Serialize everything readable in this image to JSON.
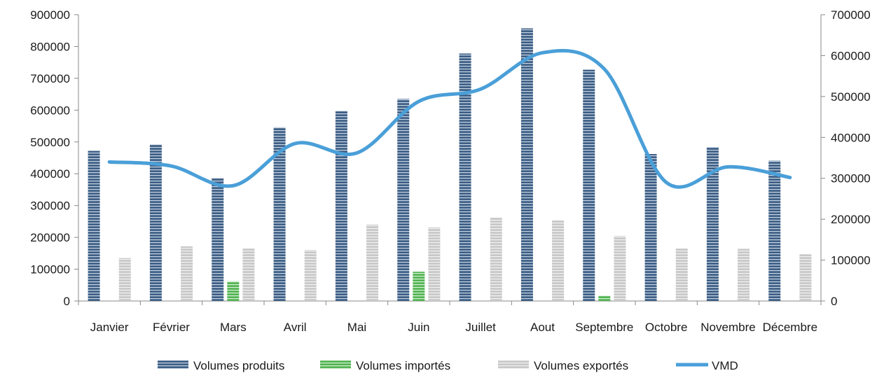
{
  "chart_data": {
    "type": "bar",
    "categories": [
      "Janvier",
      "Février",
      "Mars",
      "Avril",
      "Mai",
      "Juin",
      "Juillet",
      "Aout",
      "Septembre",
      "Octobre",
      "Novembre",
      "Décembre"
    ],
    "series": [
      {
        "name": "Volumes produits",
        "axis": "left",
        "kind": "bar",
        "color": "#4a6a8e",
        "values": [
          472000,
          492000,
          387000,
          546000,
          598000,
          635000,
          778000,
          857000,
          727000,
          462000,
          484000,
          441000
        ]
      },
      {
        "name": "Volumes importés",
        "axis": "left",
        "kind": "bar",
        "color": "#5cb85c",
        "values": [
          0,
          0,
          62000,
          0,
          0,
          92000,
          0,
          0,
          17000,
          0,
          0,
          0
        ]
      },
      {
        "name": "Volumes exportés",
        "axis": "left",
        "kind": "bar",
        "color": "#cfcfcf",
        "values": [
          135000,
          172000,
          165000,
          160000,
          240000,
          231000,
          262000,
          254000,
          204000,
          165000,
          164000,
          147000
        ]
      },
      {
        "name": "VMD",
        "axis": "right",
        "kind": "line",
        "color": "#4a9fd8",
        "values": [
          340000,
          330000,
          282000,
          385000,
          362000,
          488000,
          518000,
          607000,
          567000,
          290000,
          328000,
          302000
        ]
      }
    ],
    "yleft": {
      "min": 0,
      "max": 900000,
      "ticks": [
        "0",
        "100000",
        "200000",
        "300000",
        "400000",
        "500000",
        "600000",
        "700000",
        "800000",
        "900000"
      ]
    },
    "yright": {
      "min": 0,
      "max": 700000,
      "ticks": [
        "0",
        "100000",
        "200000",
        "300000",
        "400000",
        "500000",
        "600000",
        "700000"
      ]
    },
    "legend": {
      "position": "bottom",
      "items": [
        "Volumes produits",
        "Volumes importés",
        "Volumes exportés",
        "VMD"
      ]
    },
    "grid": false
  }
}
